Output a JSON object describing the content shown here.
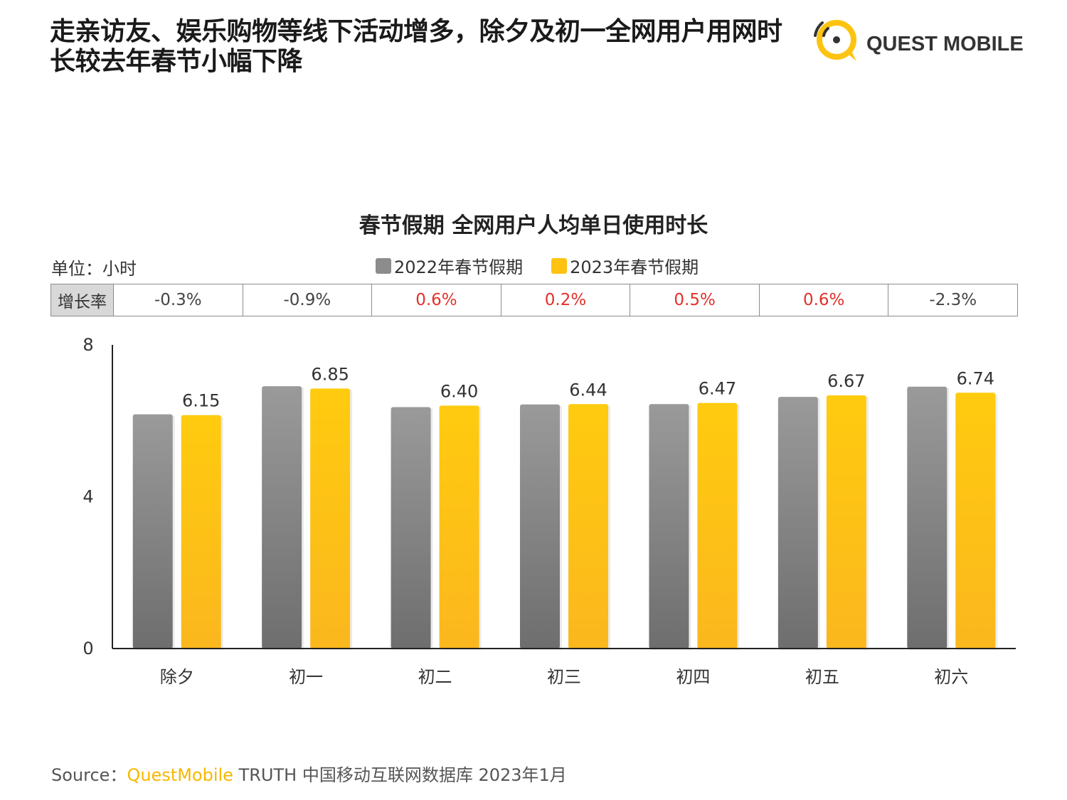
{
  "headline": "走亲访友、娱乐购物等线下活动增多，除夕及初一全网用户用网时长较去年春节小幅下降",
  "logo": {
    "text": "QUEST MOBILE",
    "icon": "quest-mobile-logo-icon"
  },
  "unit_label": "单位：小时",
  "growth_row": {
    "header": "增长率",
    "values": [
      "-0.3%",
      "-0.9%",
      "0.6%",
      "0.2%",
      "0.5%",
      "0.6%",
      "-2.3%"
    ]
  },
  "colors": {
    "gray": "#8c8c8c",
    "yellow": "#fdc310",
    "positive_text": "#e0322a",
    "negative_text": "#444444"
  },
  "chart_data": {
    "type": "bar",
    "title": "春节假期 全网用户人均单日使用时长",
    "categories": [
      "除夕",
      "初一",
      "初二",
      "初三",
      "初四",
      "初五",
      "初六"
    ],
    "series": [
      {
        "name": "2022年春节假期",
        "values": [
          6.17,
          6.91,
          6.36,
          6.43,
          6.44,
          6.63,
          6.9
        ]
      },
      {
        "name": "2023年春节假期",
        "values": [
          6.15,
          6.85,
          6.4,
          6.44,
          6.47,
          6.67,
          6.74
        ]
      }
    ],
    "data_labels": [
      "6.15",
      "6.85",
      "6.40",
      "6.44",
      "6.47",
      "6.67",
      "6.74"
    ],
    "yticks": [
      "0",
      "4",
      "8"
    ],
    "ylim": [
      0,
      8
    ],
    "grid": false,
    "legend_position": "top-center"
  },
  "source": {
    "prefix": "Source：",
    "brand": "QuestMobile",
    "rest": " TRUTH 中国移动互联网数据库 2023年1月"
  }
}
